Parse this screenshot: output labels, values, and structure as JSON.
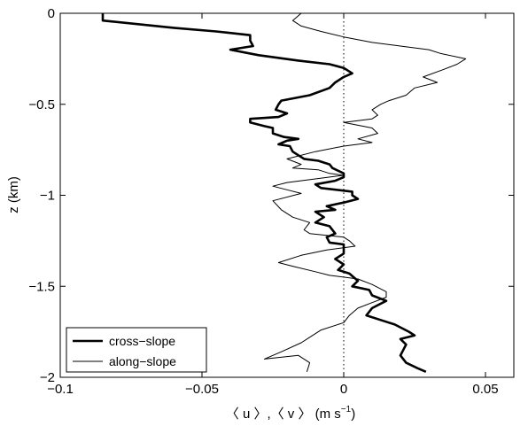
{
  "chart_data": {
    "type": "line",
    "title": "",
    "xlabel": "〈 u 〉,〈 v 〉 (m s",
    "xlabel_sup": "−1",
    "xlabel_close": ")",
    "ylabel": "z (km)",
    "xlim": [
      -0.1,
      0.06
    ],
    "ylim": [
      -2,
      0
    ],
    "xticks": [
      -0.1,
      -0.05,
      0,
      0.05
    ],
    "xtick_labels": [
      "−0.1",
      "−0.05",
      "0",
      "0.05"
    ],
    "yticks": [
      0,
      -0.5,
      -1,
      -1.5,
      -2
    ],
    "ytick_labels": [
      "0",
      "−0.5",
      "−1",
      "−1.5",
      "−2"
    ],
    "grid": false,
    "legend_position": "bottom-left",
    "reference_line": {
      "x": 0,
      "style": "dotted"
    },
    "series": [
      {
        "name": "cross−slope",
        "style": "thick",
        "color": "#000000",
        "points": [
          [
            -0.085,
            0.0
          ],
          [
            -0.085,
            -0.04
          ],
          [
            -0.06,
            -0.08
          ],
          [
            -0.045,
            -0.1
          ],
          [
            -0.033,
            -0.12
          ],
          [
            -0.033,
            -0.15
          ],
          [
            -0.032,
            -0.18
          ],
          [
            -0.04,
            -0.2
          ],
          [
            -0.03,
            -0.23
          ],
          [
            -0.016,
            -0.26
          ],
          [
            -0.005,
            -0.28
          ],
          [
            0.0,
            -0.3
          ],
          [
            0.003,
            -0.33
          ],
          [
            0.0,
            -0.35
          ],
          [
            -0.003,
            -0.38
          ],
          [
            -0.005,
            -0.41
          ],
          [
            -0.012,
            -0.45
          ],
          [
            -0.022,
            -0.48
          ],
          [
            -0.023,
            -0.5
          ],
          [
            -0.024,
            -0.53
          ],
          [
            -0.02,
            -0.55
          ],
          [
            -0.023,
            -0.57
          ],
          [
            -0.033,
            -0.58
          ],
          [
            -0.033,
            -0.6
          ],
          [
            -0.028,
            -0.62
          ],
          [
            -0.025,
            -0.63
          ],
          [
            -0.025,
            -0.66
          ],
          [
            -0.021,
            -0.68
          ],
          [
            -0.016,
            -0.69
          ],
          [
            -0.02,
            -0.7
          ],
          [
            -0.023,
            -0.72
          ],
          [
            -0.019,
            -0.73
          ],
          [
            -0.018,
            -0.76
          ],
          [
            -0.016,
            -0.78
          ],
          [
            -0.014,
            -0.8
          ],
          [
            -0.009,
            -0.81
          ],
          [
            -0.005,
            -0.83
          ],
          [
            -0.004,
            -0.85
          ],
          [
            0.0,
            -0.88
          ],
          [
            0.0,
            -0.9
          ],
          [
            -0.003,
            -0.92
          ],
          [
            -0.01,
            -0.94
          ],
          [
            -0.008,
            -0.96
          ],
          [
            0.003,
            -0.98
          ],
          [
            0.003,
            -1.0
          ],
          [
            0.005,
            -1.02
          ],
          [
            0.0,
            -1.04
          ],
          [
            -0.006,
            -1.06
          ],
          [
            -0.003,
            -1.08
          ],
          [
            -0.01,
            -1.09
          ],
          [
            -0.007,
            -1.12
          ],
          [
            -0.01,
            -1.15
          ],
          [
            -0.005,
            -1.17
          ],
          [
            -0.003,
            -1.21
          ],
          [
            -0.006,
            -1.23
          ],
          [
            -0.005,
            -1.26
          ],
          [
            0.0,
            -1.27
          ],
          [
            0.0,
            -1.32
          ],
          [
            -0.003,
            -1.35
          ],
          [
            0.0,
            -1.38
          ],
          [
            -0.002,
            -1.41
          ],
          [
            0.002,
            -1.43
          ],
          [
            0.005,
            -1.47
          ],
          [
            0.003,
            -1.5
          ],
          [
            0.009,
            -1.52
          ],
          [
            0.01,
            -1.55
          ],
          [
            0.015,
            -1.58
          ],
          [
            0.01,
            -1.62
          ],
          [
            0.008,
            -1.66
          ],
          [
            0.014,
            -1.69
          ],
          [
            0.018,
            -1.71
          ],
          [
            0.023,
            -1.75
          ],
          [
            0.025,
            -1.77
          ],
          [
            0.02,
            -1.79
          ],
          [
            0.022,
            -1.82
          ],
          [
            0.02,
            -1.88
          ],
          [
            0.022,
            -1.92
          ],
          [
            0.026,
            -1.95
          ],
          [
            0.029,
            -1.97
          ]
        ]
      },
      {
        "name": "along−slope",
        "style": "thin",
        "color": "#000000",
        "points": [
          [
            -0.015,
            0.0
          ],
          [
            -0.018,
            -0.04
          ],
          [
            -0.015,
            -0.07
          ],
          [
            -0.008,
            -0.1
          ],
          [
            0.0,
            -0.13
          ],
          [
            0.01,
            -0.16
          ],
          [
            0.02,
            -0.18
          ],
          [
            0.03,
            -0.2
          ],
          [
            0.034,
            -0.22
          ],
          [
            0.043,
            -0.25
          ],
          [
            0.04,
            -0.28
          ],
          [
            0.035,
            -0.31
          ],
          [
            0.028,
            -0.35
          ],
          [
            0.033,
            -0.38
          ],
          [
            0.025,
            -0.41
          ],
          [
            0.022,
            -0.45
          ],
          [
            0.016,
            -0.48
          ],
          [
            0.013,
            -0.5
          ],
          [
            0.01,
            -0.53
          ],
          [
            0.012,
            -0.56
          ],
          [
            0.01,
            -0.58
          ],
          [
            0.0,
            -0.6
          ],
          [
            0.01,
            -0.63
          ],
          [
            0.012,
            -0.66
          ],
          [
            0.005,
            -0.69
          ],
          [
            0.01,
            -0.71
          ],
          [
            0.0,
            -0.73
          ],
          [
            -0.01,
            -0.76
          ],
          [
            -0.02,
            -0.8
          ],
          [
            -0.015,
            -0.83
          ],
          [
            -0.018,
            -0.85
          ],
          [
            -0.009,
            -0.86
          ],
          [
            -0.005,
            -0.88
          ],
          [
            0.0,
            -0.89
          ],
          [
            -0.01,
            -0.91
          ],
          [
            -0.02,
            -0.93
          ],
          [
            -0.025,
            -0.95
          ],
          [
            -0.02,
            -0.97
          ],
          [
            -0.015,
            -0.99
          ],
          [
            -0.025,
            -1.03
          ],
          [
            -0.022,
            -1.08
          ],
          [
            -0.018,
            -1.12
          ],
          [
            -0.012,
            -1.15
          ],
          [
            -0.014,
            -1.19
          ],
          [
            -0.012,
            -1.21
          ],
          [
            0.0,
            -1.23
          ],
          [
            0.002,
            -1.25
          ],
          [
            0.004,
            -1.28
          ],
          [
            -0.006,
            -1.3
          ],
          [
            -0.015,
            -1.33
          ],
          [
            -0.023,
            -1.37
          ],
          [
            -0.018,
            -1.39
          ],
          [
            -0.01,
            -1.42
          ],
          [
            -0.005,
            -1.44
          ],
          [
            0.005,
            -1.46
          ],
          [
            0.01,
            -1.49
          ],
          [
            0.015,
            -1.53
          ],
          [
            0.015,
            -1.56
          ],
          [
            0.01,
            -1.59
          ],
          [
            0.005,
            -1.62
          ],
          [
            0.002,
            -1.66
          ],
          [
            0.0,
            -1.7
          ],
          [
            -0.008,
            -1.74
          ],
          [
            -0.012,
            -1.78
          ],
          [
            -0.015,
            -1.81
          ],
          [
            -0.022,
            -1.86
          ],
          [
            -0.028,
            -1.9
          ],
          [
            -0.016,
            -1.88
          ],
          [
            -0.012,
            -1.92
          ],
          [
            -0.013,
            -1.97
          ]
        ]
      }
    ]
  }
}
